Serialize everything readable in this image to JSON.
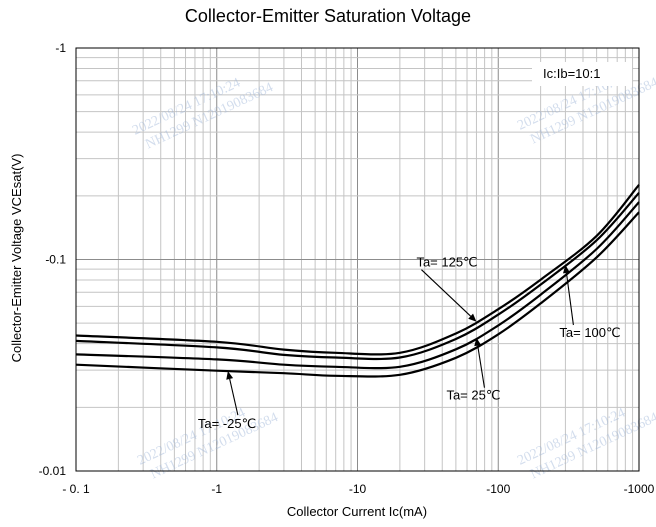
{
  "chart_data": {
    "type": "line",
    "title": "Collector-Emitter Saturation Voltage",
    "xlabel": "Collector Current   Ic(mA)",
    "ylabel": "Collector-Emitter Voltage   VCEsat(V)",
    "x_scale": "log",
    "y_scale": "log",
    "xlim": [
      -0.1,
      -1000
    ],
    "ylim": [
      -0.01,
      -1
    ],
    "x_ticks": [
      -0.1,
      -1,
      -10,
      -100,
      -1000
    ],
    "x_tick_labels": [
      "- 0. 1",
      "-1",
      "-10",
      "-100",
      "-1000"
    ],
    "y_ticks": [
      -1,
      -0.1,
      -0.01
    ],
    "y_tick_labels": [
      "-1",
      "-0.1",
      "-0.01"
    ],
    "grid": true,
    "condition_label": "Ic:Ib=10:1",
    "series": [
      {
        "name": "Ta= 125℃",
        "x": [
          -0.1,
          -1,
          -3,
          -7,
          -20,
          -50,
          -100,
          -200,
          -500,
          -1000
        ],
        "y": [
          -0.0437,
          -0.0408,
          -0.0375,
          -0.0362,
          -0.0362,
          -0.0447,
          -0.0582,
          -0.0803,
          -0.1293,
          -0.2255
        ]
      },
      {
        "name": "Ta= 100℃",
        "x": [
          -0.1,
          -1,
          -3,
          -7,
          -20,
          -50,
          -100,
          -200,
          -500,
          -1000
        ],
        "y": [
          -0.0412,
          -0.0384,
          -0.0354,
          -0.0344,
          -0.0344,
          -0.0421,
          -0.0549,
          -0.0761,
          -0.1232,
          -0.2068
        ]
      },
      {
        "name": "Ta= 25℃",
        "x": [
          -0.1,
          -1,
          -3,
          -7,
          -20,
          -50,
          -100,
          -200,
          -500,
          -1000
        ],
        "y": [
          -0.0356,
          -0.0337,
          -0.0318,
          -0.0311,
          -0.0311,
          -0.0376,
          -0.0488,
          -0.0682,
          -0.1121,
          -0.1868
        ]
      },
      {
        "name": "Ta= -25℃",
        "x": [
          -0.1,
          -1,
          -3,
          -7,
          -20,
          -50,
          -100,
          -200,
          -500,
          -1000
        ],
        "y": [
          -0.0318,
          -0.0298,
          -0.029,
          -0.0282,
          -0.0285,
          -0.0343,
          -0.0443,
          -0.062,
          -0.1023,
          -0.1674
        ]
      }
    ],
    "annotations": [
      {
        "text": "Ta= 125℃",
        "series": 0,
        "x": -70
      },
      {
        "text": "Ta= 100℃",
        "series": 1,
        "x": -300
      },
      {
        "text": "Ta= 25℃",
        "series": 2,
        "x": -70
      },
      {
        "text": "Ta= -25℃",
        "series": 3,
        "x": -1.2
      }
    ]
  },
  "watermarks": [
    {
      "line1": "2022/08/24  17:10:24",
      "line2": "NH1299  N12019083684"
    },
    {
      "line1": "2022/08/24  17:10:24",
      "line2": "NH1299  N12019083684"
    },
    {
      "line1": "2022/08/24  17:10:24",
      "line2": "NH1299  N12019083684"
    },
    {
      "line1": "2022/08/24  17:10:24",
      "line2": "NH1299  N12019083684"
    }
  ]
}
